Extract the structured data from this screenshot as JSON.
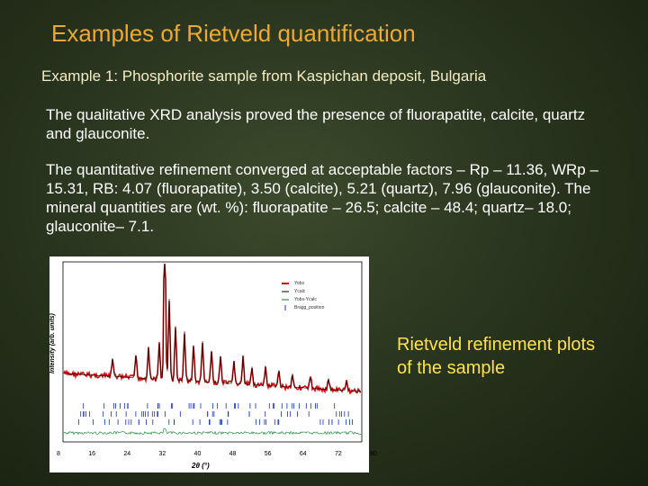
{
  "slide": {
    "title": "Examples of Rietveld quantification",
    "subtitle": "Example 1:  Phosphorite sample from Kaspichan deposit, Bulgaria",
    "paragraphs": [
      "The qualitative XRD analysis proved the presence of fluorapatite, calcite, quartz and glauconite.",
      "The quantitative refinement  converged  at acceptable factors – Rp – 11.36, WRp – 15.31, RB: 4.07 (fluorapatite), 3.50 (calcite), 5.21 (quartz), 7.96 (glauconite).  The mineral quantities are (wt. %): fluorapatite – 26.5; calcite – 48.4; quartz– 18.0; glauconite– 7.1."
    ],
    "caption": "Rietveld refinement plots of the sample"
  },
  "figure": {
    "y_label": "Intensity (arb. units)",
    "x_label": "2θ (°)",
    "x_ticks": [
      "8",
      "16",
      "24",
      "32",
      "40",
      "48",
      "56",
      "64",
      "72",
      "80"
    ],
    "legend": [
      "Yobs",
      "Ycalc",
      "Yobs-Ycalc",
      "Bragg_position"
    ]
  }
}
